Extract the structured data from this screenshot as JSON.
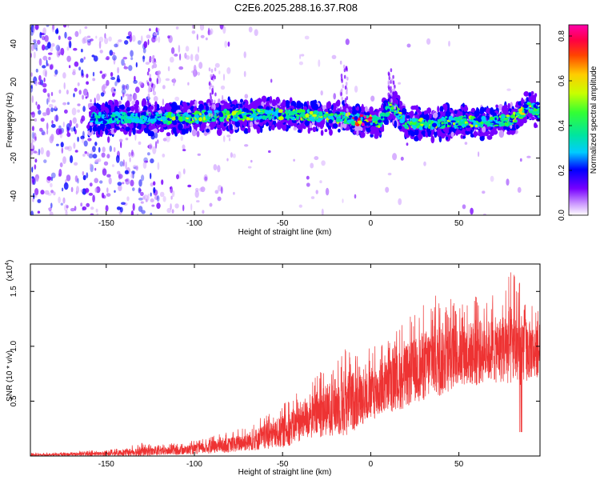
{
  "figure": {
    "title": "C2E6.2025.288.16.37.R08"
  },
  "chart_data": [
    {
      "type": "heatmap",
      "panel": "spectrogram",
      "xlabel": "Height of straight line (km)",
      "ylabel": "Frequency (Hz)",
      "xlim": [
        -193,
        96
      ],
      "ylim": [
        -50,
        50
      ],
      "x_ticks": [
        -150,
        -100,
        -50,
        0,
        50
      ],
      "y_ticks": [
        -40,
        -20,
        0,
        20,
        40
      ],
      "colorbar": {
        "label": "Normalized spectral amplitude",
        "range": [
          0.0,
          0.85
        ],
        "ticks": [
          "0.0",
          "0.2",
          "0.4",
          "0.6",
          "0.8"
        ],
        "colors": [
          "#ffffff",
          "#cc99ff",
          "#7700ff",
          "#0000ff",
          "#00ccff",
          "#00e5a0",
          "#33ff33",
          "#c8ff00",
          "#ffcc00",
          "#ff4400",
          "#ff0044",
          "#ff00aa"
        ]
      },
      "band_center_hz": [
        {
          "x": -155,
          "y": 1
        },
        {
          "x": -130,
          "y": 1
        },
        {
          "x": -110,
          "y": 1
        },
        {
          "x": -90,
          "y": 2
        },
        {
          "x": -70,
          "y": 3
        },
        {
          "x": -50,
          "y": 3
        },
        {
          "x": -30,
          "y": 2
        },
        {
          "x": -15,
          "y": 1
        },
        {
          "x": -5,
          "y": 0
        },
        {
          "x": 5,
          "y": -1
        },
        {
          "x": 12,
          "y": 8
        },
        {
          "x": 20,
          "y": -2
        },
        {
          "x": 35,
          "y": -2
        },
        {
          "x": 50,
          "y": -1
        },
        {
          "x": 65,
          "y": -1
        },
        {
          "x": 80,
          "y": 0
        },
        {
          "x": 90,
          "y": 7
        },
        {
          "x": 96,
          "y": 4
        }
      ]
    },
    {
      "type": "line",
      "panel": "snr",
      "xlabel": "Height of straight line (km)",
      "ylabel": "SNR (10 * v/v)",
      "y_scale_label": "(x10",
      "y_scale_exponent": "4",
      "xlim": [
        -193,
        96
      ],
      "ylim": [
        0,
        1.75
      ],
      "x_ticks": [
        -150,
        -100,
        -50,
        0,
        50
      ],
      "y_ticks": [
        0.5,
        1.0,
        1.5
      ],
      "y_tick_labels": [
        "0.5",
        "1.0",
        "1.5"
      ],
      "color": "#ee3333",
      "series": [
        {
          "x": [
            -193,
            -180,
            -160,
            -150,
            -140,
            -130,
            -120,
            -110,
            -100,
            -90,
            -80,
            -70,
            -60,
            -50,
            -45,
            -40,
            -35,
            -30,
            -25,
            -20,
            -15,
            -10,
            -5,
            0,
            5,
            10,
            15,
            20,
            25,
            30,
            35,
            40,
            45,
            50,
            55,
            60,
            65,
            70,
            75,
            80,
            85,
            90,
            96
          ],
          "mean": [
            0.01,
            0.01,
            0.02,
            0.02,
            0.03,
            0.04,
            0.04,
            0.05,
            0.06,
            0.08,
            0.1,
            0.13,
            0.17,
            0.22,
            0.26,
            0.3,
            0.34,
            0.38,
            0.42,
            0.45,
            0.48,
            0.5,
            0.52,
            0.56,
            0.6,
            0.64,
            0.68,
            0.72,
            0.78,
            0.82,
            0.86,
            0.88,
            0.9,
            0.92,
            0.93,
            0.94,
            0.95,
            0.96,
            0.98,
            1.0,
            0.98,
            0.96,
            0.95
          ],
          "peak": [
            0.03,
            0.03,
            0.05,
            0.05,
            0.08,
            0.12,
            0.1,
            0.12,
            0.14,
            0.18,
            0.22,
            0.28,
            0.38,
            0.48,
            0.55,
            0.6,
            0.68,
            0.78,
            0.85,
            0.92,
            1.05,
            1.0,
            0.95,
            1.0,
            1.05,
            1.1,
            1.15,
            1.25,
            1.3,
            1.4,
            1.45,
            1.5,
            1.45,
            1.4,
            1.45,
            1.5,
            1.45,
            1.5,
            1.55,
            1.7,
            1.6,
            1.45,
            1.35
          ]
        }
      ]
    }
  ]
}
